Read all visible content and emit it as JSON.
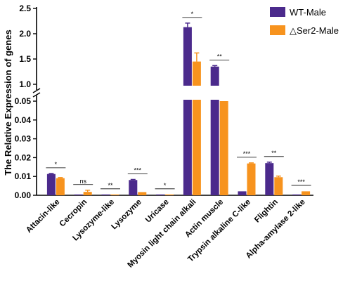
{
  "chart_data": {
    "type": "bar",
    "ylabel": "The Relative Expression of genes",
    "xlabel": "",
    "title": "",
    "y_axis_break": true,
    "y_upper_segment": {
      "ylim": [
        1,
        2.5
      ],
      "ticks": [
        "1.0",
        "1.5",
        "2.0",
        "2.5"
      ],
      "tick_values": [
        1.0,
        1.5,
        2.0,
        2.5
      ]
    },
    "y_lower_segment": {
      "ylim": [
        0,
        0.05
      ],
      "ticks": [
        "0.00",
        "0.01",
        "0.02",
        "0.03",
        "0.04",
        "0.05"
      ],
      "tick_values": [
        0,
        0.01,
        0.02,
        0.03,
        0.04,
        0.05
      ]
    },
    "legend_position": "top-right",
    "categories": [
      "Attacin-like",
      "Cecropin",
      "Lysozyme-like",
      "Lysozyme",
      "Uricase",
      "Myosin light chain alkali",
      "Actin muscle",
      "Trypsin  alkaline C-like",
      "Flightin",
      "Alpha-amylase 2-like"
    ],
    "series": [
      {
        "name": "WT-Male",
        "color": "#4b2a8c",
        "values": [
          0.0113,
          0.0003,
          0.0002,
          0.0081,
          0.0002,
          2.13,
          1.35,
          0.0021,
          0.0171,
          0.0003
        ],
        "errors": [
          0.0003,
          0.0001,
          0.0001,
          0.0003,
          0.0001,
          0.08,
          0.02,
          0.0001,
          0.0005,
          0.0001
        ]
      },
      {
        "name": "△Ser2-Male",
        "color": "#f7931e",
        "values": [
          0.0091,
          0.0018,
          0.0002,
          0.0017,
          0.0003,
          1.45,
          0.95,
          0.0169,
          0.0096,
          0.0021
        ],
        "errors": [
          0.0003,
          0.0009,
          0.0001,
          0.0002,
          0.0001,
          0.17,
          0.01,
          0.0003,
          0.0006,
          0.0002
        ]
      }
    ],
    "significance": [
      "*",
      "ns",
      "**",
      "***",
      "*",
      "*",
      "**",
      "***",
      "**",
      "***"
    ]
  }
}
